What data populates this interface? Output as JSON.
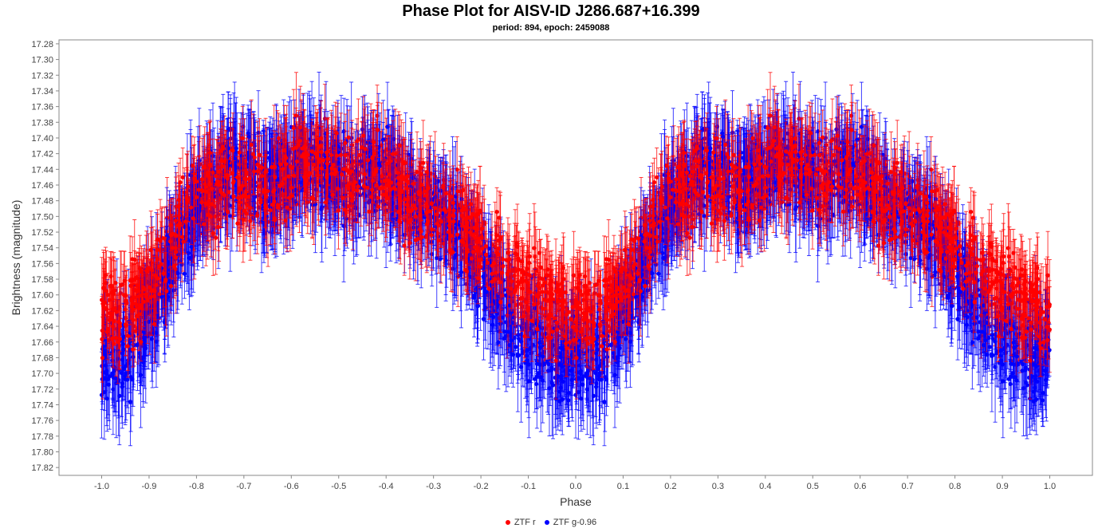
{
  "chart_data": {
    "type": "scatter",
    "title": "Phase Plot for AISV-ID J286.687+16.399",
    "subtitle": "period: 894, epoch: 2459088",
    "xlabel": "Phase",
    "ylabel": "Brightness (magnitude)",
    "xlim": [
      -1.09,
      1.09
    ],
    "ylim": [
      17.83,
      17.275
    ],
    "y_inverted": true,
    "grid": false,
    "error_bars": true,
    "x_ticks": [
      "-1.0",
      "-0.9",
      "-0.8",
      "-0.7",
      "-0.6",
      "-0.5",
      "-0.4",
      "-0.3",
      "-0.2",
      "-0.1",
      "0.0",
      "0.1",
      "0.2",
      "0.3",
      "0.4",
      "0.5",
      "0.6",
      "0.7",
      "0.8",
      "0.9",
      "1.0"
    ],
    "y_ticks": [
      "17.28",
      "17.30",
      "17.32",
      "17.34",
      "17.36",
      "17.38",
      "17.40",
      "17.42",
      "17.44",
      "17.46",
      "17.48",
      "17.50",
      "17.52",
      "17.54",
      "17.56",
      "17.58",
      "17.60",
      "17.62",
      "17.64",
      "17.66",
      "17.68",
      "17.70",
      "17.72",
      "17.74",
      "17.76",
      "17.78",
      "17.80",
      "17.82"
    ],
    "legend_position": "bottom-center",
    "series": [
      {
        "name": "ZTF r",
        "color": "#ff0000",
        "phase": [
          0.0,
          0.02,
          0.04,
          0.06,
          0.08,
          0.1,
          0.12,
          0.14,
          0.16,
          0.18,
          0.2,
          0.22,
          0.24,
          0.26,
          0.28,
          0.3,
          0.32,
          0.34,
          0.36,
          0.38,
          0.4,
          0.42,
          0.44,
          0.46,
          0.48,
          0.5,
          0.52,
          0.54,
          0.56,
          0.58,
          0.6,
          0.62,
          0.64,
          0.66,
          0.68,
          0.7,
          0.72,
          0.74,
          0.76,
          0.78,
          0.8,
          0.82,
          0.84,
          0.86,
          0.88,
          0.9,
          0.92,
          0.94,
          0.96,
          0.98,
          1.0
        ],
        "mag": [
          17.62,
          17.63,
          17.62,
          17.61,
          17.6,
          17.59,
          17.57,
          17.55,
          17.52,
          17.5,
          17.48,
          17.47,
          17.46,
          17.45,
          17.45,
          17.46,
          17.46,
          17.47,
          17.46,
          17.45,
          17.44,
          17.43,
          17.43,
          17.44,
          17.44,
          17.45,
          17.45,
          17.44,
          17.44,
          17.44,
          17.45,
          17.46,
          17.47,
          17.48,
          17.48,
          17.48,
          17.49,
          17.5,
          17.51,
          17.52,
          17.53,
          17.55,
          17.56,
          17.57,
          17.58,
          17.59,
          17.6,
          17.61,
          17.62,
          17.62,
          17.62
        ],
        "error": 0.04
      },
      {
        "name": "ZTF g-0.96",
        "color": "#0000ff",
        "phase": [
          0.0,
          0.02,
          0.04,
          0.06,
          0.08,
          0.1,
          0.12,
          0.14,
          0.16,
          0.18,
          0.2,
          0.22,
          0.24,
          0.26,
          0.28,
          0.3,
          0.32,
          0.34,
          0.36,
          0.38,
          0.4,
          0.42,
          0.44,
          0.46,
          0.48,
          0.5,
          0.52,
          0.54,
          0.56,
          0.58,
          0.6,
          0.62,
          0.64,
          0.66,
          0.68,
          0.7,
          0.72,
          0.74,
          0.76,
          0.78,
          0.8,
          0.82,
          0.84,
          0.86,
          0.88,
          0.9,
          0.92,
          0.94,
          0.96,
          0.98,
          1.0
        ],
        "mag": [
          17.68,
          17.69,
          17.69,
          17.68,
          17.66,
          17.63,
          17.6,
          17.57,
          17.54,
          17.51,
          17.49,
          17.47,
          17.46,
          17.44,
          17.44,
          17.44,
          17.45,
          17.46,
          17.46,
          17.45,
          17.44,
          17.43,
          17.43,
          17.44,
          17.45,
          17.46,
          17.46,
          17.45,
          17.44,
          17.44,
          17.45,
          17.46,
          17.47,
          17.48,
          17.49,
          17.5,
          17.51,
          17.52,
          17.53,
          17.55,
          17.57,
          17.59,
          17.61,
          17.63,
          17.65,
          17.66,
          17.67,
          17.68,
          17.68,
          17.69,
          17.68
        ],
        "error": 0.05
      }
    ]
  }
}
